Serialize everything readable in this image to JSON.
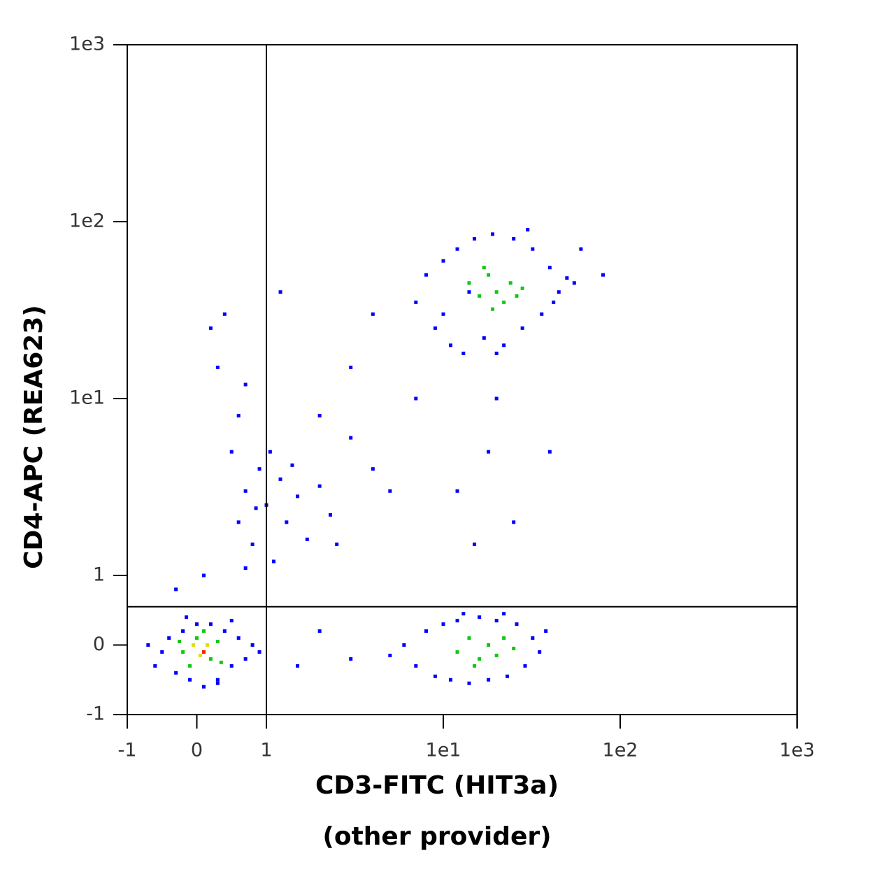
{
  "chart_data": {
    "type": "scatter",
    "xlabel": [
      "CD3-FITC (HIT3a)",
      "(other provider)"
    ],
    "ylabel": "CD4-APC (REA623)",
    "scale": "biexponential",
    "xlim": [
      -1,
      1000
    ],
    "ylim": [
      -1,
      1000
    ],
    "xticks": [
      -1,
      0,
      1,
      {
        "value": 10,
        "label": "1e1"
      },
      {
        "value": 100,
        "label": "1e2"
      },
      {
        "value": 1000,
        "label": "1e3"
      }
    ],
    "yticks": [
      -1,
      0,
      1,
      {
        "value": 10,
        "label": "1e1"
      },
      {
        "value": 100,
        "label": "1e2"
      },
      {
        "value": 1000,
        "label": "1e3"
      }
    ],
    "gates": {
      "x": 1,
      "y": 0.55
    },
    "series": [
      {
        "color": "#0000ff",
        "x": [
          -0.5,
          -0.4,
          -0.3,
          -0.2,
          -0.1,
          0,
          0.1,
          0.2,
          0.3,
          0.4,
          0.5,
          0.6,
          0.7,
          0.8,
          -0.6,
          0.5,
          -0.15,
          0.9,
          -0.7,
          0.3,
          6,
          7,
          8,
          9,
          10,
          11,
          12,
          14,
          16,
          18,
          20,
          23,
          26,
          29,
          32,
          35,
          38,
          5,
          13,
          22,
          7,
          8,
          9,
          10,
          11,
          12,
          13,
          15,
          17,
          19,
          22,
          25,
          28,
          32,
          36,
          40,
          45,
          50,
          10,
          30,
          14,
          42,
          20,
          55,
          0.6,
          0.7,
          0.8,
          0.9,
          1,
          1.1,
          1.2,
          1.3,
          1.5,
          1.7,
          2,
          2.3,
          0.7,
          1.05,
          1.4,
          0.85,
          0.3,
          0.2,
          0.6,
          0.5,
          0.4,
          0.7,
          2,
          3,
          4,
          5,
          3,
          4,
          2.5,
          12,
          15,
          18,
          20,
          25,
          2,
          3,
          1.5,
          40,
          0.1,
          -0.3,
          7,
          1.2,
          60,
          80
        ],
        "y": [
          -0.1,
          0.1,
          -0.4,
          0.2,
          -0.5,
          0.3,
          -0.6,
          0.3,
          -0.5,
          0.2,
          -0.3,
          0.1,
          -0.2,
          0,
          -0.3,
          0.35,
          0.4,
          -0.1,
          0,
          -0.55,
          0,
          -0.3,
          0.2,
          -0.45,
          0.3,
          -0.5,
          0.35,
          -0.55,
          0.4,
          -0.5,
          0.35,
          -0.45,
          0.3,
          -0.3,
          0.1,
          -0.1,
          0.2,
          -0.15,
          0.45,
          0.45,
          35,
          50,
          25,
          60,
          20,
          70,
          18,
          80,
          22,
          85,
          20,
          80,
          25,
          70,
          30,
          55,
          40,
          48,
          30,
          90,
          40,
          35,
          18,
          45,
          2,
          3,
          1.5,
          4,
          2.5,
          1.2,
          3.5,
          2,
          2.8,
          1.6,
          3.2,
          2.2,
          1.1,
          5,
          4.2,
          2.4,
          15,
          25,
          8,
          5,
          30,
          12,
          8,
          6,
          4,
          3,
          15,
          30,
          1.5,
          3,
          1.5,
          5,
          10,
          2,
          0.2,
          -0.2,
          -0.3,
          5,
          1,
          0.8,
          10,
          40,
          70,
          50
        ]
      },
      {
        "color": "#10c810",
        "x": [
          -0.2,
          0,
          0.2,
          0.3,
          -0.1,
          0.1,
          0.35,
          -0.25,
          12,
          14,
          16,
          18,
          20,
          22,
          15,
          25,
          14,
          16,
          18,
          20,
          22,
          24,
          26,
          19,
          17,
          28
        ],
        "y": [
          -0.1,
          0.1,
          -0.2,
          0.05,
          -0.3,
          0.2,
          -0.25,
          0.05,
          -0.1,
          0.1,
          -0.2,
          0,
          -0.15,
          0.1,
          -0.3,
          -0.05,
          45,
          38,
          50,
          40,
          35,
          45,
          38,
          32,
          55,
          42
        ]
      },
      {
        "color": "#e0e000",
        "x": [
          0.05,
          0.15,
          -0.05
        ],
        "y": [
          -0.15,
          0,
          0
        ]
      },
      {
        "color": "#ff2000",
        "x": [
          0.1
        ],
        "y": [
          -0.1
        ]
      }
    ]
  }
}
